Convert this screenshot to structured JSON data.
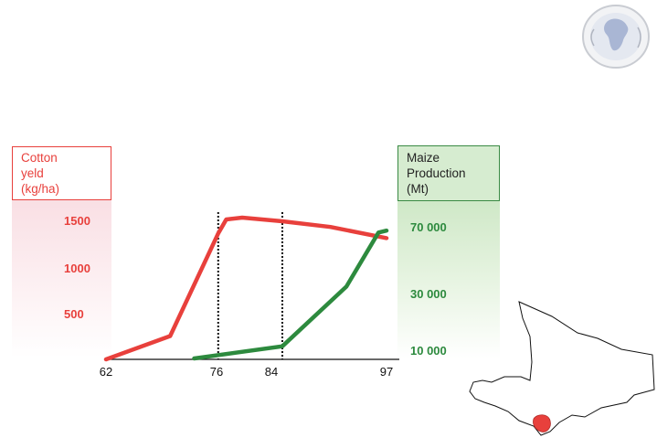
{
  "chart_data": {
    "type": "line",
    "left_axis": {
      "title": "Cotton\nyeld\n(kg/ha)",
      "ticks": [
        "1500",
        "1000",
        "500"
      ],
      "color": "#e8403c"
    },
    "right_axis": {
      "title": "Maize\nProduction\n(Mt)",
      "ticks": [
        "70 000",
        "30 000",
        "10 000"
      ],
      "color": "#2d8a3e"
    },
    "x_ticks": [
      "62",
      "76",
      "84",
      "97"
    ],
    "xlim": [
      62,
      97
    ],
    "reference_lines_x": [
      76,
      84
    ],
    "series": [
      {
        "axis": "left",
        "color": "#e8403c",
        "points": [
          [
            62,
            0
          ],
          [
            70,
            250
          ],
          [
            76,
            1350
          ],
          [
            77,
            1500
          ],
          [
            79,
            1520
          ],
          [
            84,
            1480
          ],
          [
            90,
            1420
          ],
          [
            97,
            1300
          ]
        ]
      },
      {
        "axis": "right",
        "color": "#2d8a3e",
        "points": [
          [
            73,
            10
          ],
          [
            84,
            140
          ],
          [
            92,
            780
          ],
          [
            96,
            1360
          ],
          [
            97,
            1380
          ]
        ]
      }
    ]
  },
  "logo": {
    "icon": "africa-globe-logo"
  },
  "map": {
    "icon": "mali-map-icon",
    "highlight_color": "#e8403c"
  }
}
